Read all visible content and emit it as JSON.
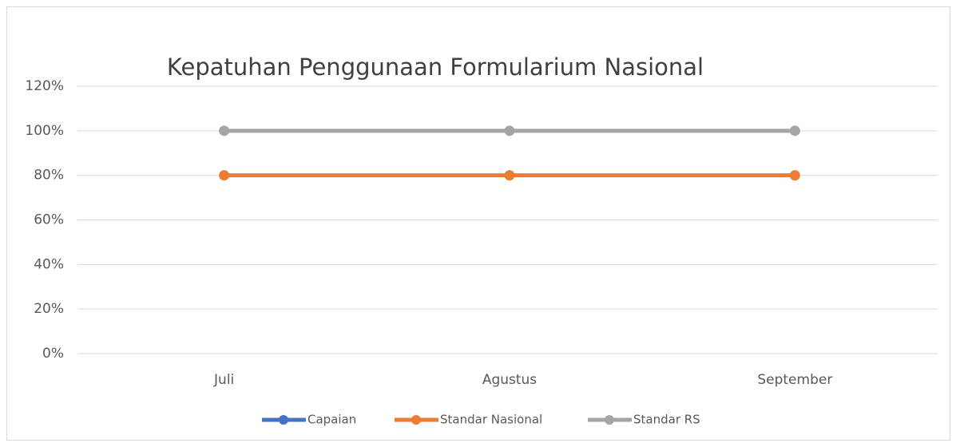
{
  "chart_data": {
    "type": "line",
    "title": "Kepatuhan Penggunaan Formularium Nasional",
    "categories": [
      "Juli",
      "Agustus",
      "September"
    ],
    "series": [
      {
        "name": "Capaian",
        "color": "#4472c4",
        "values": [
          null,
          null,
          null
        ]
      },
      {
        "name": "Standar Nasional",
        "color": "#ed7d31",
        "values": [
          80,
          80,
          80
        ]
      },
      {
        "name": "Standar RS",
        "color": "#a5a5a5",
        "values": [
          100,
          100,
          100
        ]
      }
    ],
    "ylim": [
      0,
      120
    ],
    "yticks": [
      {
        "value": 0,
        "label": "0%"
      },
      {
        "value": 20,
        "label": "20%"
      },
      {
        "value": 40,
        "label": "40%"
      },
      {
        "value": 60,
        "label": "60%"
      },
      {
        "value": 80,
        "label": "80%"
      },
      {
        "value": 100,
        "label": "100%"
      },
      {
        "value": 120,
        "label": "120%"
      }
    ],
    "grid": true,
    "legend": "bottom"
  }
}
